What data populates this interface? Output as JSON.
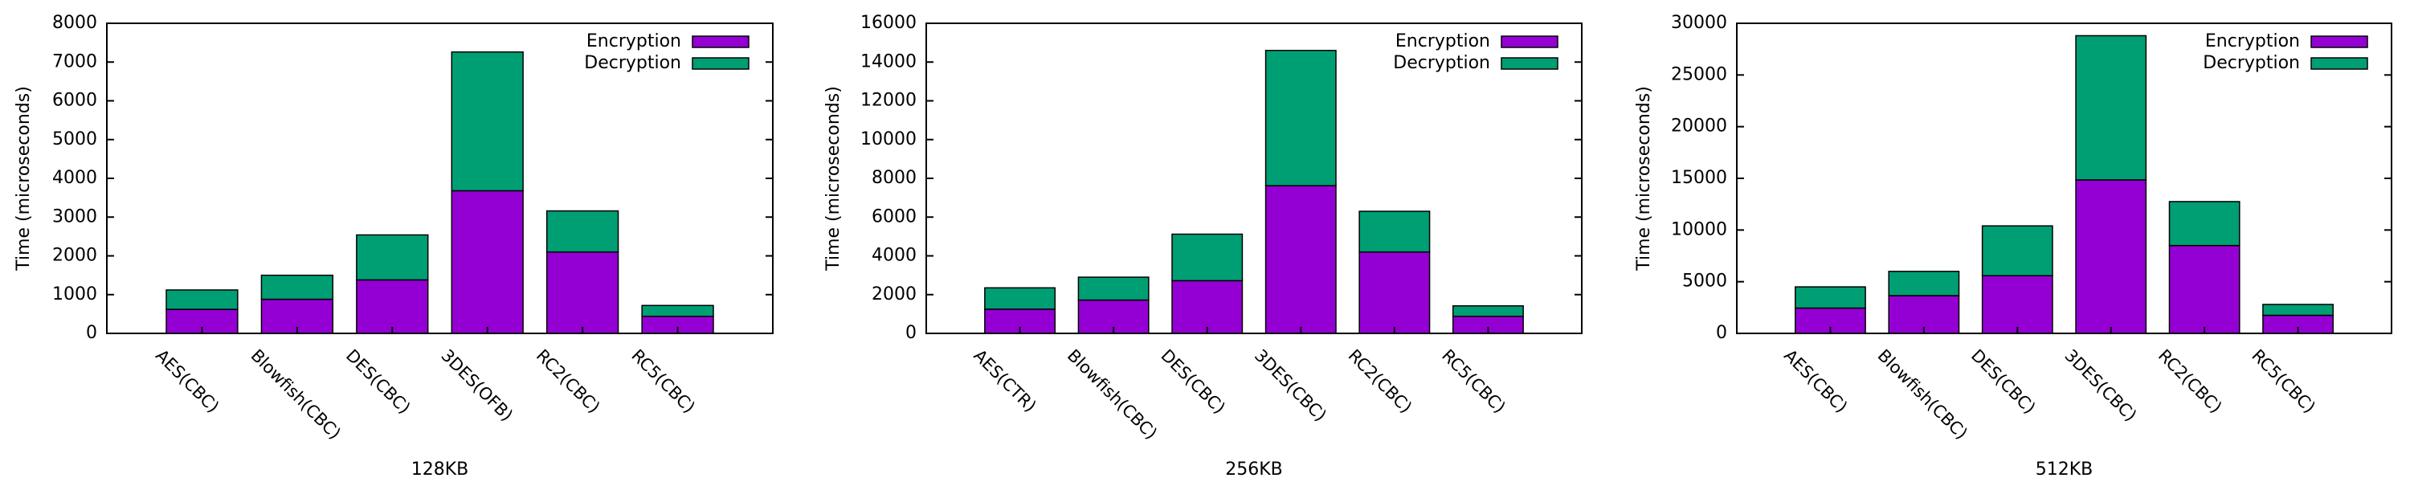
{
  "chart_data": [
    {
      "type": "bar",
      "stacked": true,
      "title": "",
      "xlabel": "128KB",
      "ylabel": "Time (microseconds)",
      "ylim": [
        0,
        8000
      ],
      "yticks": [
        0,
        1000,
        2000,
        3000,
        4000,
        5000,
        6000,
        7000,
        8000
      ],
      "categories": [
        "AES(CBC)",
        "Blowfish(CBC)",
        "DES(CBC)",
        "3DES(OFB)",
        "RC2(CBC)",
        "RC5(CBC)"
      ],
      "series": [
        {
          "name": "Encryption",
          "color": "#9400d3",
          "values": [
            620,
            880,
            1380,
            3680,
            2100,
            440
          ]
        },
        {
          "name": "Decryption",
          "color": "#009e73",
          "values": [
            500,
            620,
            1160,
            3580,
            1060,
            280
          ]
        }
      ],
      "legend_position": "top-right",
      "grid": false
    },
    {
      "type": "bar",
      "stacked": true,
      "title": "",
      "xlabel": "256KB",
      "ylabel": "Time (microseconds)",
      "ylim": [
        0,
        16000
      ],
      "yticks": [
        0,
        2000,
        4000,
        6000,
        8000,
        10000,
        12000,
        14000,
        16000
      ],
      "categories": [
        "AES(CTR)",
        "Blowfish(CBC)",
        "DES(CBC)",
        "3DES(CBC)",
        "RC2(CBC)",
        "RC5(CBC)"
      ],
      "series": [
        {
          "name": "Encryption",
          "color": "#9400d3",
          "values": [
            1250,
            1720,
            2720,
            7620,
            4200,
            880
          ]
        },
        {
          "name": "Decryption",
          "color": "#009e73",
          "values": [
            1100,
            1180,
            2400,
            6980,
            2100,
            540
          ]
        }
      ],
      "legend_position": "top-right",
      "grid": false
    },
    {
      "type": "bar",
      "stacked": true,
      "title": "",
      "xlabel": "512KB",
      "ylabel": "Time (microseconds)",
      "ylim": [
        0,
        30000
      ],
      "yticks": [
        0,
        5000,
        10000,
        15000,
        20000,
        25000,
        30000
      ],
      "categories": [
        "AES(CBC)",
        "Blowfish(CBC)",
        "DES(CBC)",
        "3DES(CBC)",
        "RC2(CBC)",
        "RC5(CBC)"
      ],
      "series": [
        {
          "name": "Encryption",
          "color": "#9400d3",
          "values": [
            2450,
            3650,
            5580,
            14850,
            8500,
            1750
          ]
        },
        {
          "name": "Decryption",
          "color": "#009e73",
          "values": [
            2050,
            2350,
            4820,
            13950,
            4250,
            1050
          ]
        }
      ],
      "legend_position": "top-right",
      "grid": false
    }
  ]
}
